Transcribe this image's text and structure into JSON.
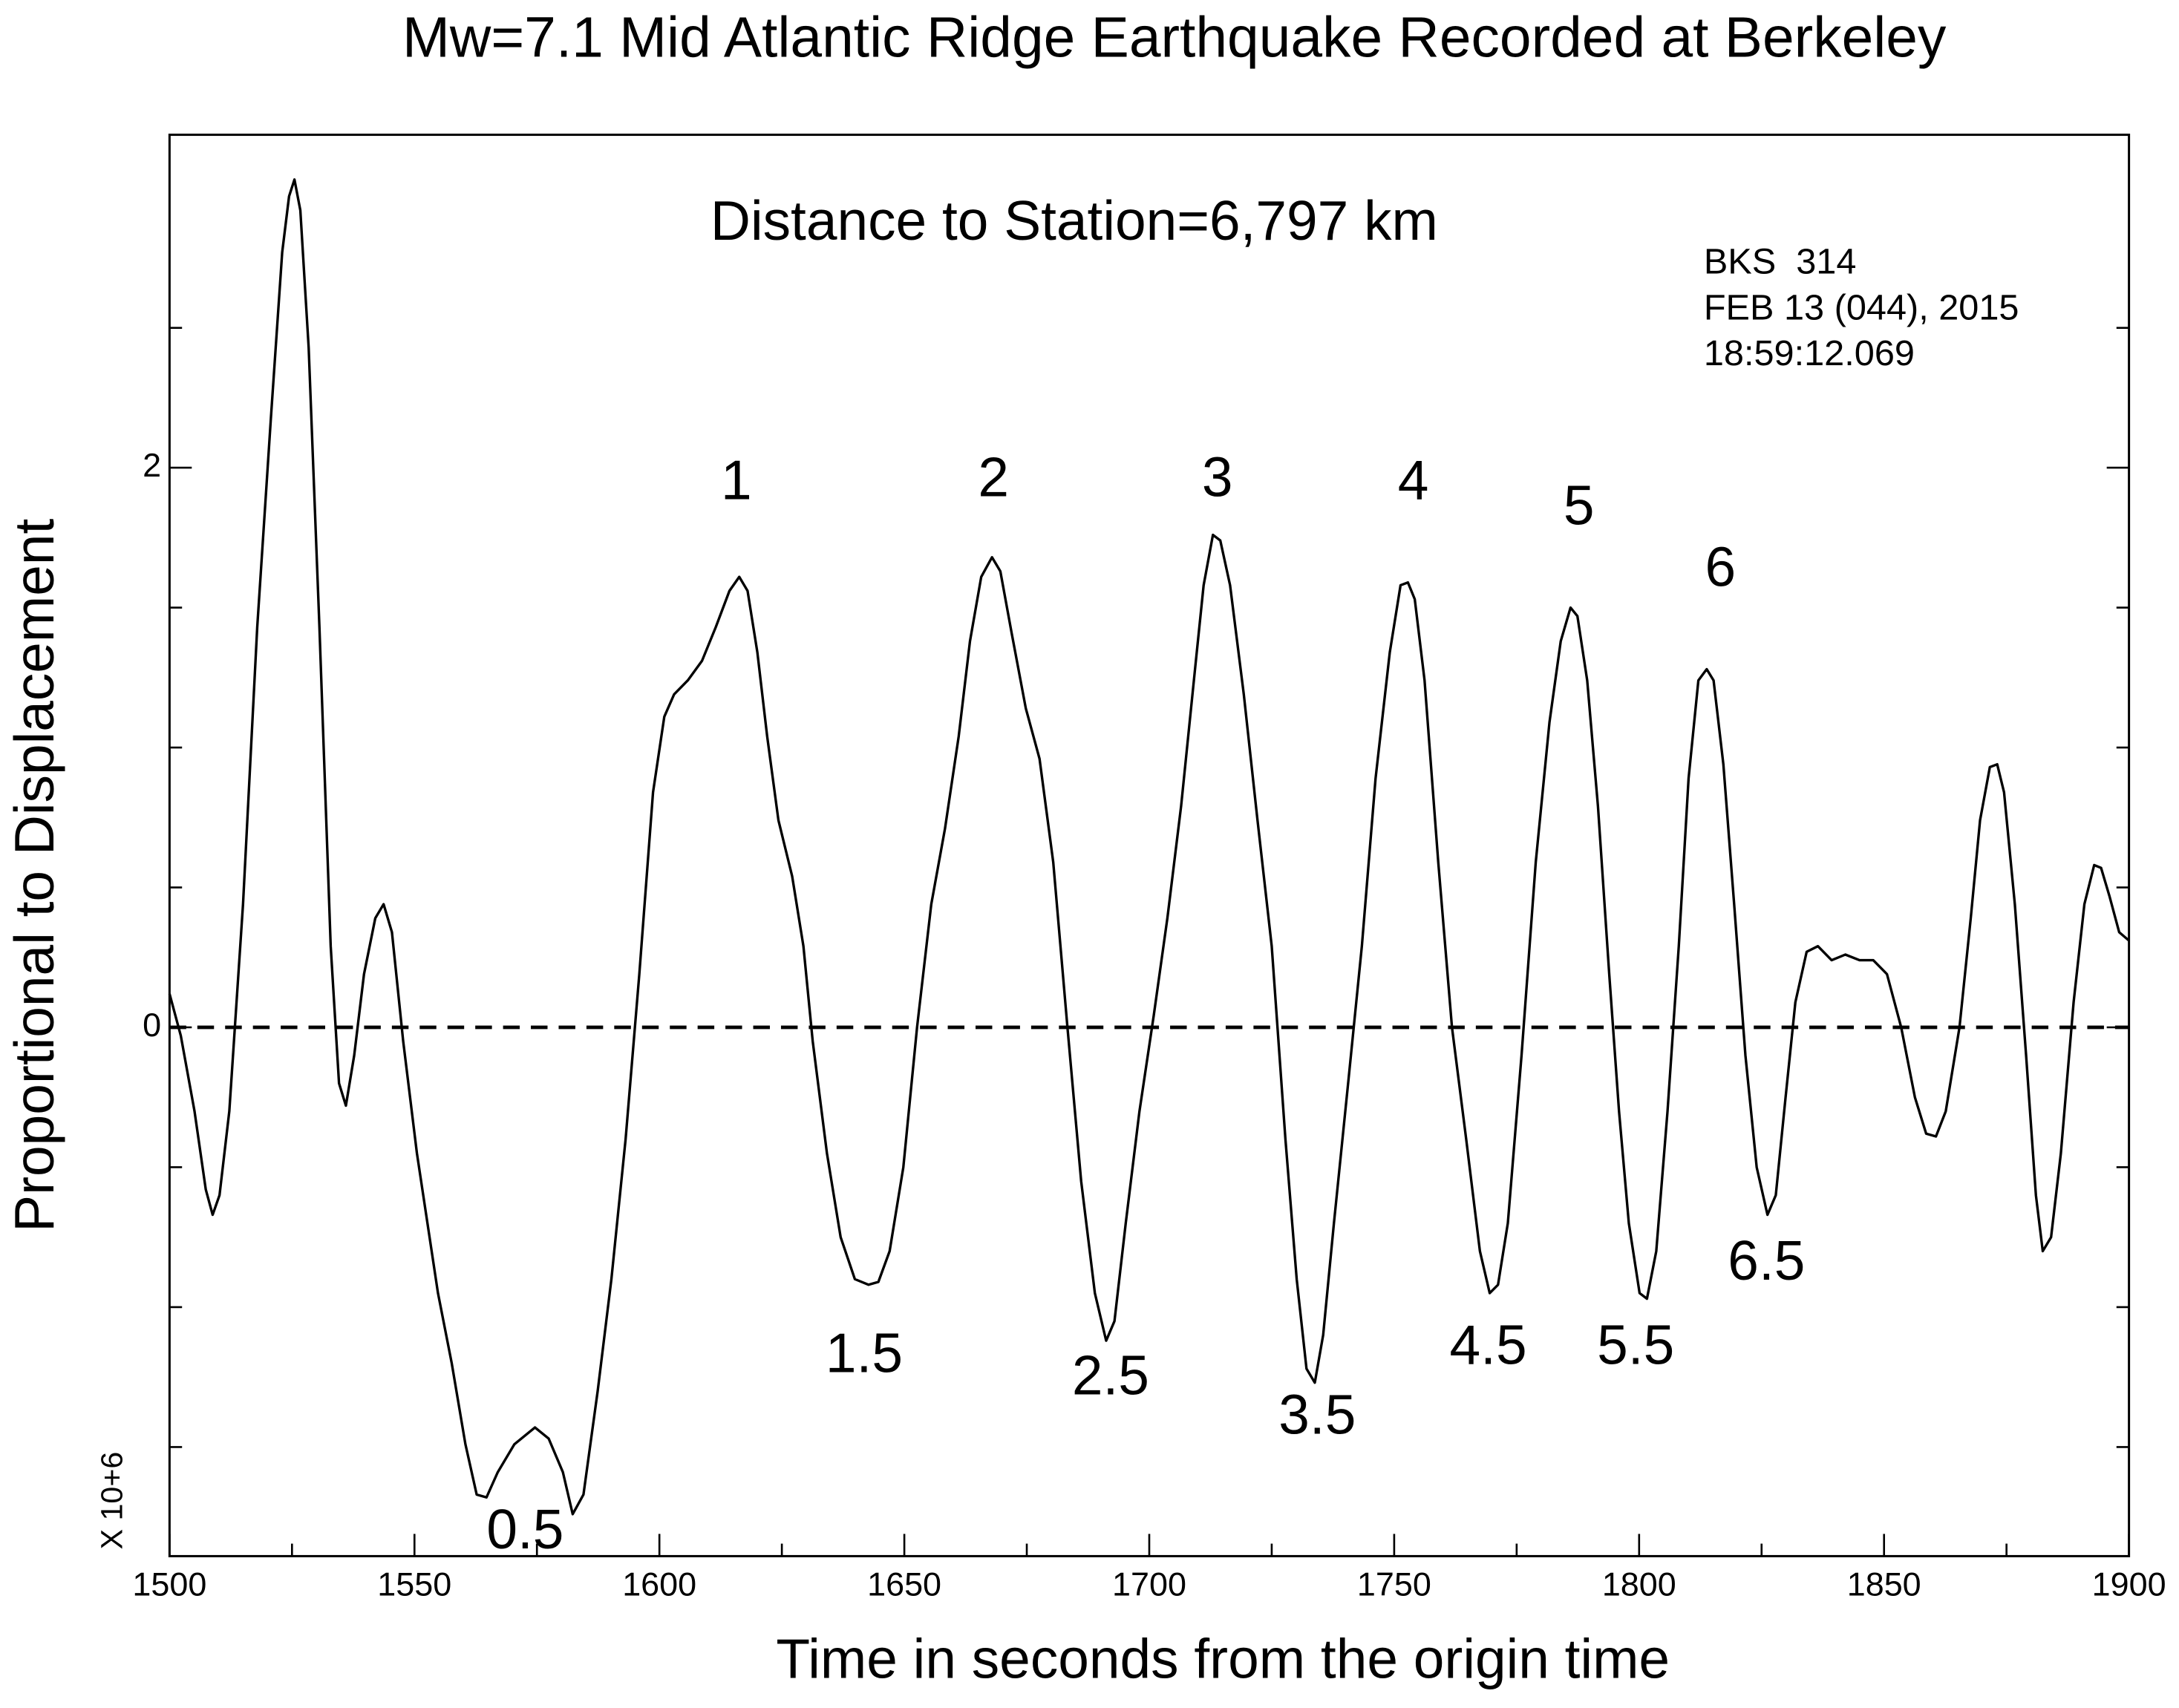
{
  "chart_data": {
    "type": "line",
    "title": "Mw=7.1 Mid Atlantic Ridge Earthquake Recorded at Berkeley",
    "subtitle": "Distance to Station=6,797 km",
    "station_info": [
      "BKS  314",
      "FEB 13 (044), 2015",
      "18:59:12.069"
    ],
    "x_label": "Time in seconds from the origin time",
    "y_label": "Proportional to Displacement",
    "y_multiplier": "X 10+6",
    "color": "#000000",
    "xlim": [
      1500,
      1900
    ],
    "xticks": [
      1500,
      1550,
      1600,
      1650,
      1700,
      1750,
      1800,
      1850,
      1900
    ],
    "xticks_minor": [
      1525,
      1575,
      1625,
      1675,
      1725,
      1775,
      1825,
      1875
    ],
    "ylim": [
      -1.89,
      3.19
    ],
    "yticks": [
      0,
      2
    ],
    "yticks_minor": [
      -1.5,
      -1,
      -0.5,
      0.5,
      1,
      1.5,
      2.5
    ],
    "reference_line": {
      "y": 0,
      "style": "dashed"
    },
    "x": [
      1500.0,
      1502.3,
      1505.1,
      1507.4,
      1508.8,
      1510.2,
      1512.2,
      1515.0,
      1517.9,
      1520.7,
      1523.0,
      1524.4,
      1525.5,
      1526.7,
      1528.4,
      1530.6,
      1532.9,
      1534.6,
      1536.0,
      1537.7,
      1539.7,
      1542.0,
      1543.7,
      1545.4,
      1547.7,
      1550.5,
      1554.8,
      1557.6,
      1560.4,
      1562.7,
      1564.7,
      1567.0,
      1570.4,
      1574.6,
      1577.4,
      1580.3,
      1582.3,
      1584.5,
      1587.4,
      1590.2,
      1593.1,
      1595.9,
      1598.7,
      1601.0,
      1603.0,
      1605.8,
      1608.7,
      1611.5,
      1614.3,
      1616.3,
      1618.0,
      1620.0,
      1622.0,
      1624.3,
      1627.1,
      1629.4,
      1631.3,
      1634.2,
      1637.0,
      1639.9,
      1642.7,
      1644.7,
      1647.0,
      1649.8,
      1652.6,
      1655.5,
      1658.3,
      1661.1,
      1663.4,
      1665.7,
      1667.9,
      1669.6,
      1671.9,
      1674.8,
      1677.6,
      1680.4,
      1683.3,
      1686.1,
      1688.9,
      1691.2,
      1692.9,
      1695.2,
      1698.0,
      1700.9,
      1703.7,
      1706.5,
      1709.4,
      1711.1,
      1713.0,
      1714.5,
      1716.5,
      1719.3,
      1722.1,
      1725.0,
      1727.8,
      1730.1,
      1732.1,
      1733.8,
      1735.5,
      1737.7,
      1740.6,
      1743.4,
      1746.2,
      1749.1,
      1751.3,
      1752.8,
      1754.2,
      1756.2,
      1759.0,
      1761.8,
      1764.7,
      1767.5,
      1769.5,
      1771.2,
      1773.2,
      1776.0,
      1778.9,
      1781.7,
      1784.0,
      1786.0,
      1787.4,
      1789.4,
      1791.6,
      1793.9,
      1795.9,
      1797.9,
      1800.1,
      1801.6,
      1803.5,
      1805.8,
      1808.1,
      1810.1,
      1812.1,
      1813.8,
      1815.2,
      1817.2,
      1819.4,
      1821.7,
      1824.0,
      1826.2,
      1827.9,
      1829.9,
      1831.9,
      1834.2,
      1836.5,
      1839.3,
      1842.1,
      1845.0,
      1847.8,
      1850.6,
      1853.5,
      1856.3,
      1858.6,
      1860.6,
      1862.6,
      1865.4,
      1867.7,
      1869.6,
      1871.6,
      1873.1,
      1874.5,
      1876.7,
      1879.0,
      1881.0,
      1882.4,
      1884.1,
      1886.1,
      1888.7,
      1890.9,
      1892.9,
      1894.3,
      1896.0,
      1898.0,
      1900.0
    ],
    "values": [
      0.12,
      -0.03,
      -0.3,
      -0.58,
      -0.67,
      -0.6,
      -0.3,
      0.44,
      1.43,
      2.18,
      2.77,
      2.97,
      3.03,
      2.92,
      2.43,
      1.43,
      0.29,
      -0.2,
      -0.28,
      -0.1,
      0.19,
      0.39,
      0.44,
      0.34,
      -0.05,
      -0.45,
      -0.95,
      -1.2,
      -1.49,
      -1.67,
      -1.68,
      -1.59,
      -1.49,
      -1.43,
      -1.47,
      -1.59,
      -1.74,
      -1.67,
      -1.3,
      -0.9,
      -0.4,
      0.19,
      0.84,
      1.11,
      1.19,
      1.24,
      1.31,
      1.43,
      1.56,
      1.61,
      1.56,
      1.34,
      1.04,
      0.74,
      0.54,
      0.29,
      -0.05,
      -0.45,
      -0.75,
      -0.9,
      -0.92,
      -0.91,
      -0.8,
      -0.5,
      0,
      0.44,
      0.71,
      1.04,
      1.38,
      1.61,
      1.68,
      1.63,
      1.41,
      1.14,
      0.96,
      0.59,
      0,
      -0.55,
      -0.95,
      -1.12,
      -1.05,
      -0.7,
      -0.3,
      0.04,
      0.39,
      0.79,
      1.29,
      1.58,
      1.76,
      1.74,
      1.58,
      1.19,
      0.74,
      0.29,
      -0.4,
      -0.9,
      -1.22,
      -1.27,
      -1.1,
      -0.7,
      -0.2,
      0.29,
      0.89,
      1.34,
      1.58,
      1.59,
      1.53,
      1.24,
      0.59,
      0,
      -0.4,
      -0.8,
      -0.95,
      -0.92,
      -0.7,
      -0.1,
      0.59,
      1.09,
      1.38,
      1.5,
      1.47,
      1.24,
      0.79,
      0.19,
      -0.3,
      -0.7,
      -0.95,
      -0.97,
      -0.8,
      -0.3,
      0.29,
      0.89,
      1.24,
      1.28,
      1.24,
      0.94,
      0.44,
      -0.1,
      -0.5,
      -0.67,
      -0.6,
      -0.25,
      0.09,
      0.27,
      0.29,
      0.24,
      0.26,
      0.24,
      0.24,
      0.19,
      0,
      -0.25,
      -0.38,
      -0.39,
      -0.3,
      0,
      0.39,
      0.74,
      0.93,
      0.94,
      0.84,
      0.44,
      -0.1,
      -0.6,
      -0.8,
      -0.75,
      -0.45,
      0.09,
      0.44,
      0.58,
      0.57,
      0.47,
      0.34,
      0.31
    ],
    "annotations": [
      {
        "text": "1",
        "x": 1615.7,
        "y": 1.94
      },
      {
        "text": "2",
        "x": 1668.2,
        "y": 1.95
      },
      {
        "text": "3",
        "x": 1713.9,
        "y": 1.95
      },
      {
        "text": "4",
        "x": 1753.9,
        "y": 1.94
      },
      {
        "text": "5",
        "x": 1787.7,
        "y": 1.85
      },
      {
        "text": "6",
        "x": 1816.6,
        "y": 1.63
      },
      {
        "text": "0.5",
        "x": 1572.6,
        "y": -1.81
      },
      {
        "text": "1.5",
        "x": 1641.8,
        "y": -1.18
      },
      {
        "text": "2.5",
        "x": 1692.1,
        "y": -1.26
      },
      {
        "text": "3.5",
        "x": 1734.3,
        "y": -1.4
      },
      {
        "text": "4.5",
        "x": 1769.2,
        "y": -1.15
      },
      {
        "text": "5.5",
        "x": 1799.3,
        "y": -1.15
      },
      {
        "text": "6.5",
        "x": 1826.0,
        "y": -0.85
      }
    ]
  }
}
